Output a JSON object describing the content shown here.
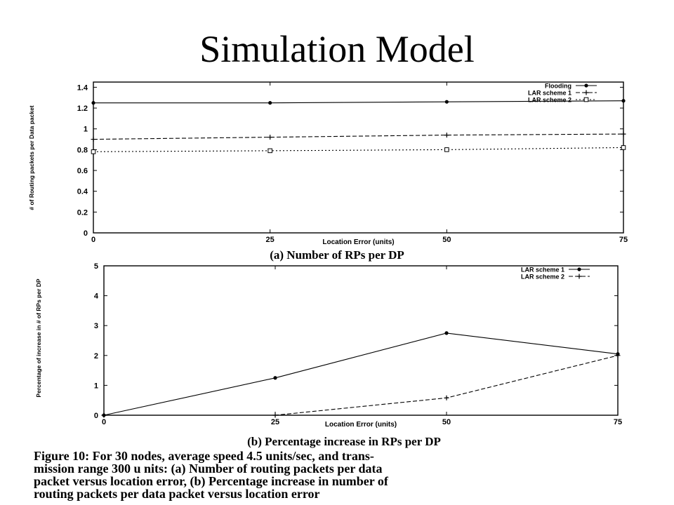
{
  "slide": {
    "title": "Simulation Model"
  },
  "chart_data": [
    {
      "type": "line",
      "caption": "(a) Number of RPs per DP",
      "xlabel": "Location Error (units)",
      "ylabel": "# of Routing packets per Data packet",
      "x": [
        0,
        25,
        50,
        75
      ],
      "xticks": [
        "0",
        "25",
        "50",
        "75"
      ],
      "yticks": [
        "0",
        "0.2",
        "0.4",
        "0.6",
        "0.8",
        "1",
        "1.2",
        "1.4"
      ],
      "xlim": [
        0,
        75
      ],
      "ylim": [
        0,
        1.45
      ],
      "legend_position": "top-right",
      "series": [
        {
          "name": "Flooding",
          "values": [
            1.25,
            1.25,
            1.26,
            1.27
          ],
          "dash": "solid",
          "marker": "dot"
        },
        {
          "name": "LAR scheme 1",
          "values": [
            0.9,
            0.92,
            0.94,
            0.95
          ],
          "dash": "dashed",
          "marker": "plus"
        },
        {
          "name": "LAR scheme 2",
          "values": [
            0.78,
            0.79,
            0.8,
            0.82
          ],
          "dash": "dotted",
          "marker": "square"
        }
      ]
    },
    {
      "type": "line",
      "caption": "(b) Percentage increase in RPs per DP",
      "xlabel": "Location Error (units)",
      "ylabel": "Percentage of increase in # of RPs per DP",
      "x": [
        0,
        25,
        50,
        75
      ],
      "xticks": [
        "0",
        "25",
        "50",
        "75"
      ],
      "yticks": [
        "0",
        "1",
        "2",
        "3",
        "4",
        "5"
      ],
      "xlim": [
        0,
        75
      ],
      "ylim": [
        0,
        5
      ],
      "legend_position": "top-right",
      "series": [
        {
          "name": "LAR scheme 1",
          "values": [
            0,
            1.25,
            2.75,
            2.05
          ],
          "dash": "solid",
          "marker": "dot"
        },
        {
          "name": "LAR scheme 2",
          "values": [
            0,
            0,
            0.58,
            2.0
          ],
          "dash": "dashed",
          "marker": "plus"
        }
      ]
    }
  ],
  "figure_caption": [
    "Figure 10:  For 30 nodes, average speed 4.5 units/sec, and trans-",
    "mission range 300 u nits:  (a) Number of routing packets per data",
    "packet versus location error, (b) Percentage increase in number of",
    "routing packets per data packet versus location error"
  ]
}
